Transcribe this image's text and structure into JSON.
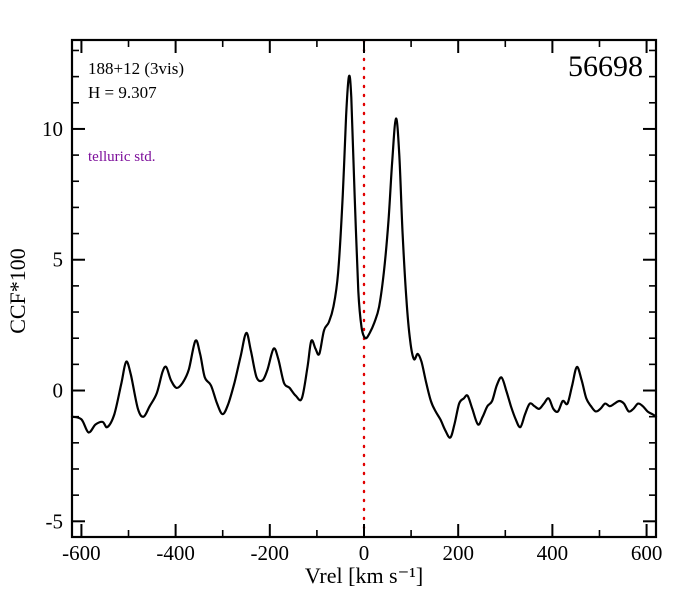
{
  "annotations": {
    "field": "188+12 (3vis)",
    "hmag": "H = 9.307",
    "telluric": "telluric std.",
    "mjd": "56698"
  },
  "colors": {
    "curve": "#000000",
    "zero_line": "#e00000",
    "telluric_text": "#7d0f9b",
    "frame": "#000000"
  },
  "chart_data": {
    "type": "line",
    "title": "",
    "xlabel": "Vrel [km s⁻¹]",
    "ylabel": "CCF*100",
    "xlim": [
      -620,
      620
    ],
    "ylim": [
      -5.6,
      13.4
    ],
    "x_ticks": [
      -600,
      -400,
      -200,
      0,
      200,
      400,
      600
    ],
    "y_ticks": [
      -5,
      0,
      5,
      10
    ],
    "x_minor_step": 100,
    "y_minor_step": 1,
    "vline_x": 0,
    "legend": "none",
    "grid": false,
    "series": [
      {
        "name": "CCF",
        "points": [
          [
            -620,
            -1.0
          ],
          [
            -600,
            -1.1
          ],
          [
            -585,
            -1.6
          ],
          [
            -570,
            -1.3
          ],
          [
            -555,
            -1.2
          ],
          [
            -545,
            -1.4
          ],
          [
            -530,
            -0.9
          ],
          [
            -515,
            0.3
          ],
          [
            -505,
            1.1
          ],
          [
            -495,
            0.6
          ],
          [
            -480,
            -0.7
          ],
          [
            -468,
            -1.0
          ],
          [
            -455,
            -0.6
          ],
          [
            -440,
            -0.1
          ],
          [
            -428,
            0.7
          ],
          [
            -420,
            0.9
          ],
          [
            -410,
            0.4
          ],
          [
            -398,
            0.1
          ],
          [
            -385,
            0.3
          ],
          [
            -372,
            0.8
          ],
          [
            -358,
            1.9
          ],
          [
            -348,
            1.4
          ],
          [
            -338,
            0.5
          ],
          [
            -325,
            0.2
          ],
          [
            -312,
            -0.5
          ],
          [
            -300,
            -0.9
          ],
          [
            -288,
            -0.5
          ],
          [
            -275,
            0.3
          ],
          [
            -262,
            1.3
          ],
          [
            -250,
            2.2
          ],
          [
            -240,
            1.5
          ],
          [
            -228,
            0.5
          ],
          [
            -215,
            0.4
          ],
          [
            -205,
            0.8
          ],
          [
            -192,
            1.6
          ],
          [
            -182,
            1.2
          ],
          [
            -170,
            0.3
          ],
          [
            -158,
            0.1
          ],
          [
            -145,
            -0.2
          ],
          [
            -132,
            -0.3
          ],
          [
            -120,
            0.9
          ],
          [
            -112,
            1.9
          ],
          [
            -103,
            1.6
          ],
          [
            -95,
            1.4
          ],
          [
            -85,
            2.3
          ],
          [
            -75,
            2.6
          ],
          [
            -65,
            3.2
          ],
          [
            -55,
            4.5
          ],
          [
            -45,
            7.5
          ],
          [
            -38,
            10.5
          ],
          [
            -32,
            12.0
          ],
          [
            -27,
            11.2
          ],
          [
            -20,
            7.5
          ],
          [
            -12,
            3.8
          ],
          [
            -5,
            2.4
          ],
          [
            3,
            2.0
          ],
          [
            12,
            2.2
          ],
          [
            22,
            2.6
          ],
          [
            32,
            3.2
          ],
          [
            42,
            4.5
          ],
          [
            52,
            6.5
          ],
          [
            60,
            8.8
          ],
          [
            68,
            10.4
          ],
          [
            75,
            9.0
          ],
          [
            82,
            6.0
          ],
          [
            90,
            3.5
          ],
          [
            98,
            1.9
          ],
          [
            106,
            1.2
          ],
          [
            114,
            1.4
          ],
          [
            122,
            1.1
          ],
          [
            132,
            0.3
          ],
          [
            142,
            -0.4
          ],
          [
            152,
            -0.8
          ],
          [
            162,
            -1.1
          ],
          [
            172,
            -1.5
          ],
          [
            183,
            -1.8
          ],
          [
            192,
            -1.3
          ],
          [
            202,
            -0.5
          ],
          [
            212,
            -0.3
          ],
          [
            220,
            -0.2
          ],
          [
            230,
            -0.7
          ],
          [
            242,
            -1.3
          ],
          [
            252,
            -1.0
          ],
          [
            262,
            -0.6
          ],
          [
            272,
            -0.4
          ],
          [
            282,
            0.2
          ],
          [
            292,
            0.5
          ],
          [
            302,
            0.0
          ],
          [
            312,
            -0.6
          ],
          [
            322,
            -1.1
          ],
          [
            332,
            -1.4
          ],
          [
            342,
            -0.9
          ],
          [
            352,
            -0.5
          ],
          [
            362,
            -0.6
          ],
          [
            372,
            -0.7
          ],
          [
            382,
            -0.5
          ],
          [
            392,
            -0.3
          ],
          [
            402,
            -0.7
          ],
          [
            412,
            -0.8
          ],
          [
            422,
            -0.4
          ],
          [
            432,
            -0.5
          ],
          [
            442,
            0.2
          ],
          [
            452,
            0.9
          ],
          [
            462,
            0.4
          ],
          [
            472,
            -0.3
          ],
          [
            482,
            -0.6
          ],
          [
            492,
            -0.8
          ],
          [
            502,
            -0.7
          ],
          [
            512,
            -0.5
          ],
          [
            522,
            -0.6
          ],
          [
            532,
            -0.5
          ],
          [
            542,
            -0.4
          ],
          [
            552,
            -0.5
          ],
          [
            562,
            -0.8
          ],
          [
            572,
            -0.7
          ],
          [
            582,
            -0.5
          ],
          [
            592,
            -0.6
          ],
          [
            602,
            -0.8
          ],
          [
            612,
            -0.9
          ],
          [
            620,
            -1.0
          ]
        ]
      }
    ]
  }
}
